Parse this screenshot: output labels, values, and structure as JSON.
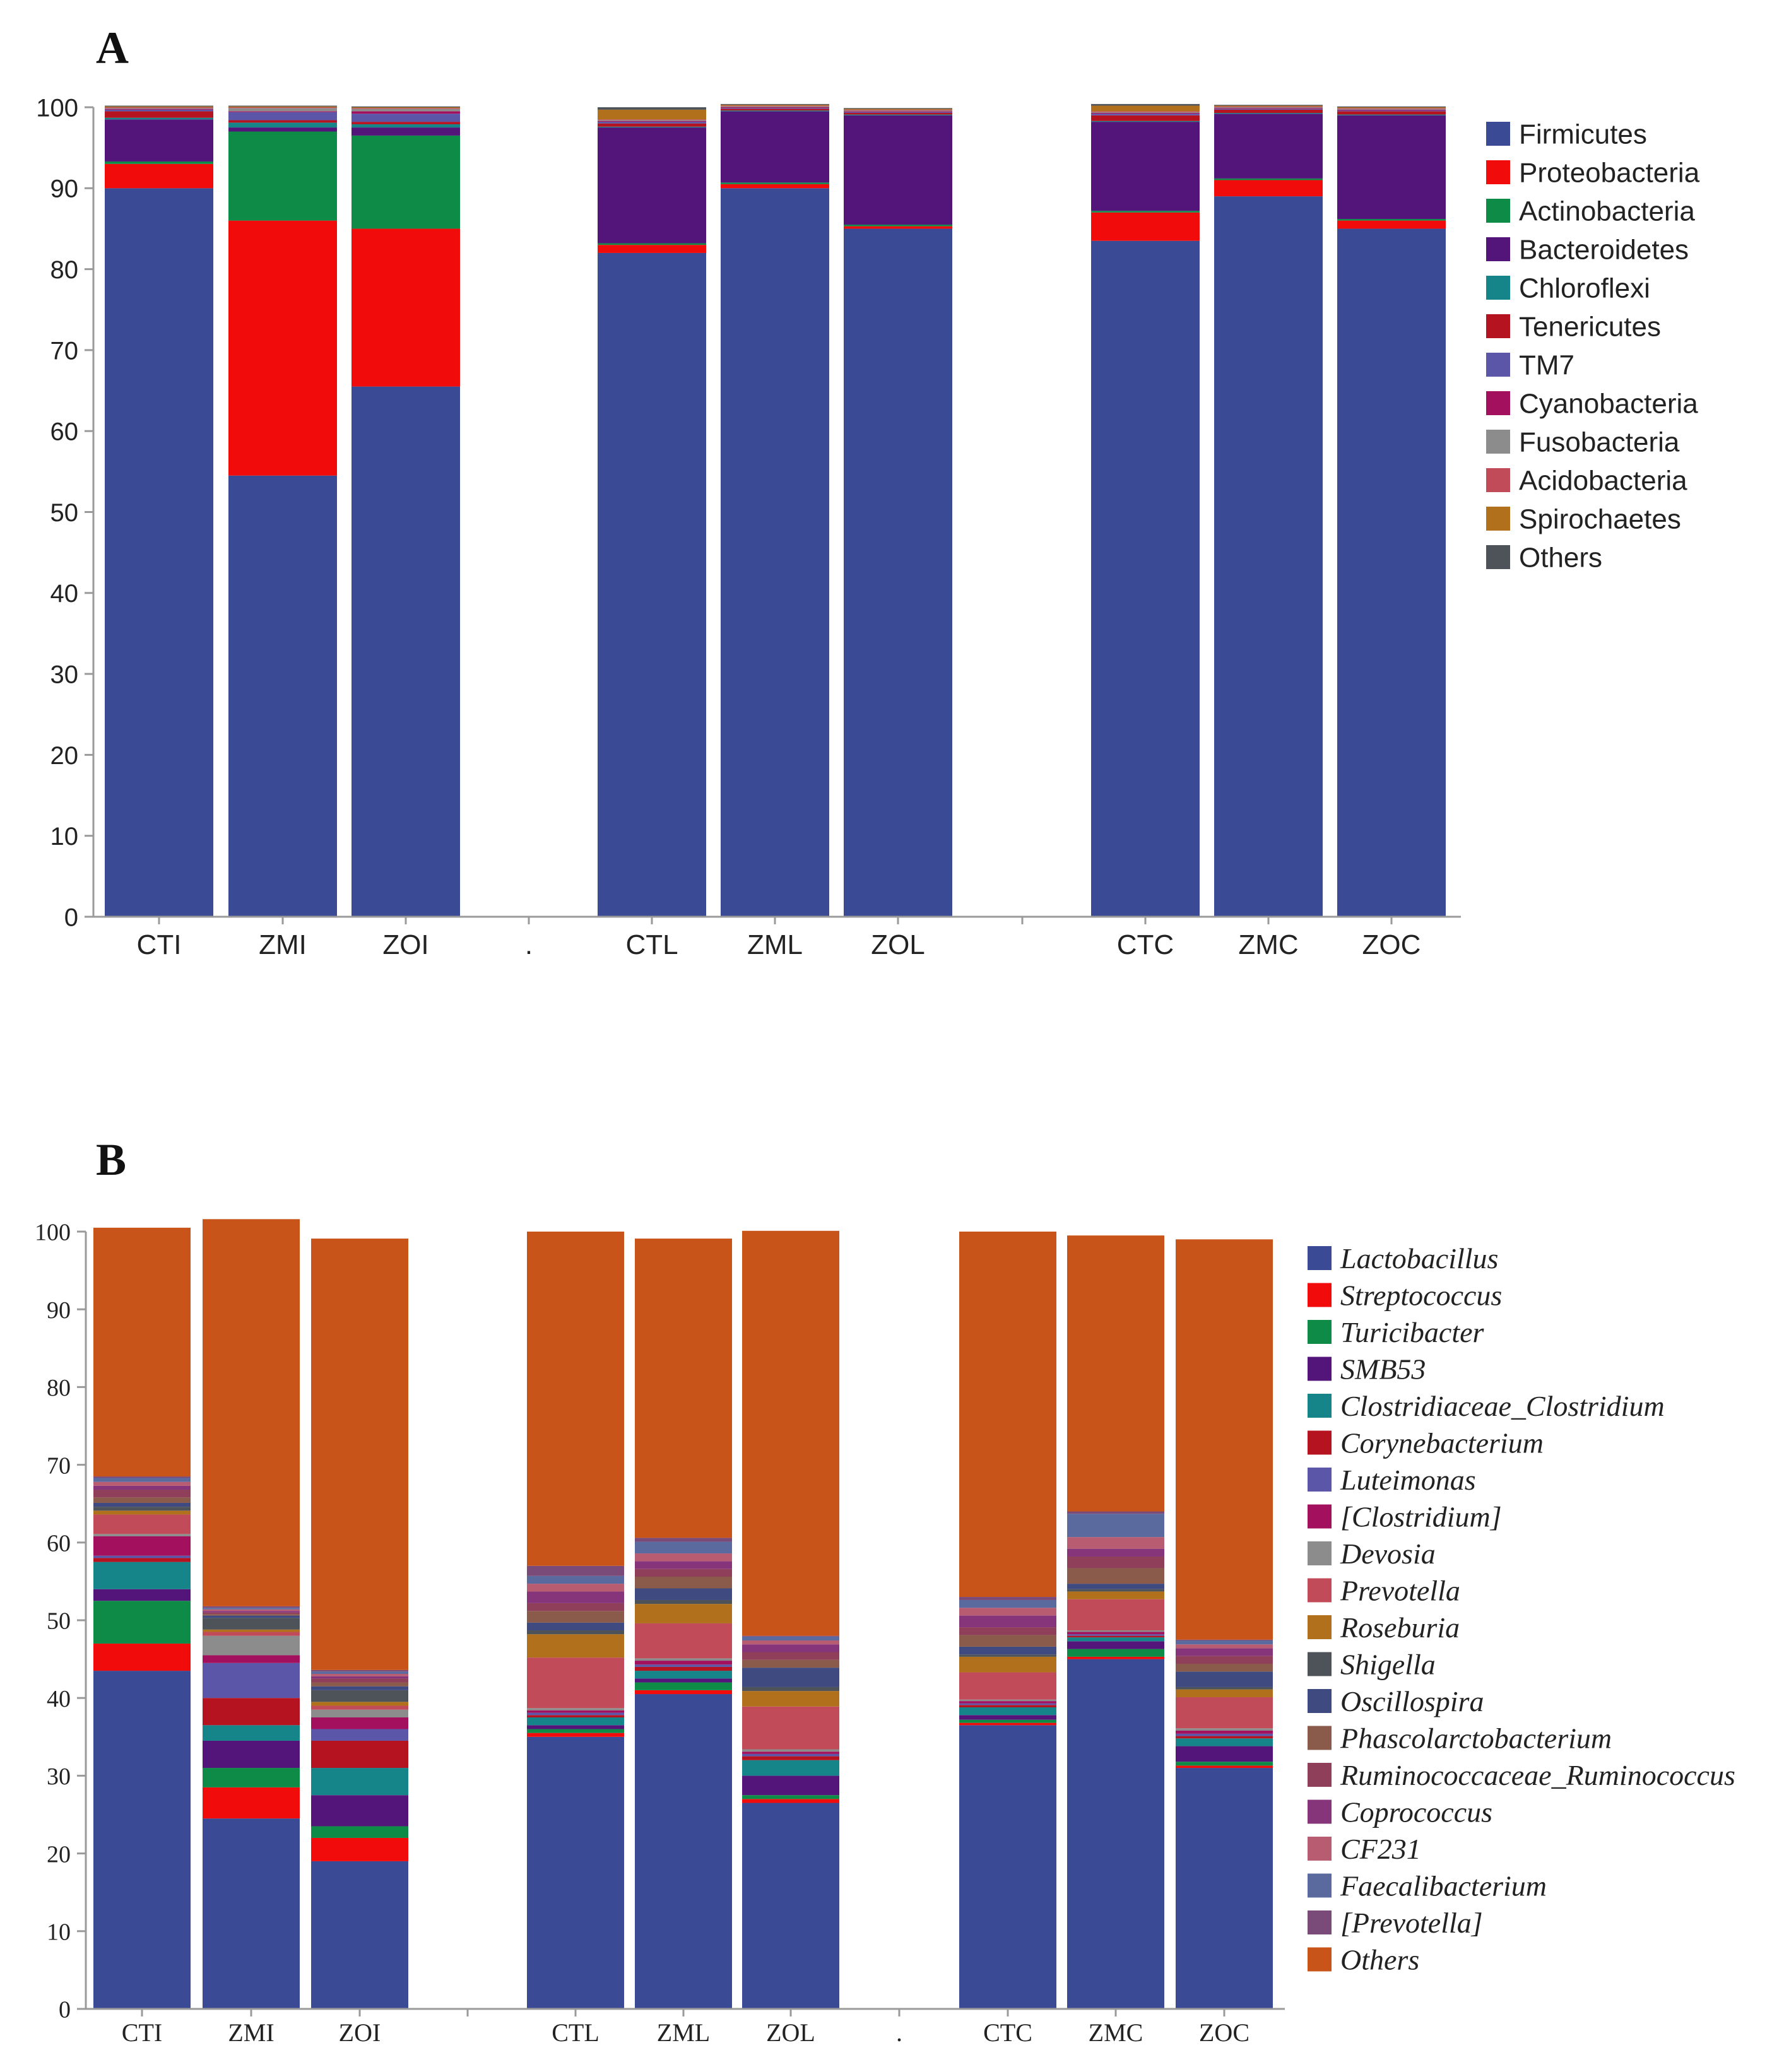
{
  "chart_data": [
    {
      "type": "bar",
      "stacked": true,
      "panel_label": "A",
      "title": "",
      "xlabel": "",
      "ylabel": "",
      "ylim": [
        0,
        100
      ],
      "yticks": [
        "0",
        "10",
        "20",
        "30",
        "40",
        "50",
        "60",
        "70",
        "80",
        "90",
        "100"
      ],
      "categories": [
        "CTI",
        "ZMI",
        "ZOI",
        ".",
        "CTL",
        "ZML",
        "ZOL",
        "",
        "CTC",
        "ZMC",
        "ZOC"
      ],
      "legend_position": "right",
      "series": [
        {
          "name": "Firmicutes",
          "color": "#3b4a94",
          "values": [
            90,
            54.5,
            65.5,
            null,
            82,
            90,
            85,
            null,
            83.5,
            89,
            85
          ]
        },
        {
          "name": "Proteobacteria",
          "color": "#f20b0b",
          "values": [
            3,
            31.5,
            19.5,
            null,
            1,
            0.5,
            0.3,
            null,
            3.5,
            2,
            1
          ]
        },
        {
          "name": "Actinobacteria",
          "color": "#0e8c47",
          "values": [
            0.3,
            11,
            11.5,
            null,
            0.2,
            0.2,
            0.2,
            null,
            0.2,
            0.2,
            0.2
          ]
        },
        {
          "name": "Bacteroidetes",
          "color": "#54157a",
          "values": [
            5.2,
            0.5,
            1,
            null,
            14.3,
            8.8,
            13.5,
            null,
            11,
            8,
            12.8
          ]
        },
        {
          "name": "Chloroflexi",
          "color": "#15858a",
          "values": [
            0.2,
            0.6,
            0.4,
            null,
            0.1,
            0.1,
            0.1,
            null,
            0.1,
            0.1,
            0.1
          ]
        },
        {
          "name": "Tenericutes",
          "color": "#b5131f",
          "values": [
            0.8,
            0.3,
            0.3,
            null,
            0.4,
            0.2,
            0.2,
            null,
            0.7,
            0.4,
            0.4
          ]
        },
        {
          "name": "TM7",
          "color": "#5c56a8",
          "values": [
            0.2,
            1,
            1,
            null,
            0.2,
            0.1,
            0.1,
            null,
            0.2,
            0.1,
            0.1
          ]
        },
        {
          "name": "Cyanobacteria",
          "color": "#a3105e",
          "values": [
            0.1,
            0.1,
            0.3,
            null,
            0.1,
            0.1,
            0.1,
            null,
            0.1,
            0.1,
            0.1
          ]
        },
        {
          "name": "Fusobacteria",
          "color": "#8c8c8c",
          "values": [
            0.1,
            0.4,
            0.3,
            null,
            0.1,
            0.1,
            0.1,
            null,
            0.1,
            0.1,
            0.1
          ]
        },
        {
          "name": "Acidobacteria",
          "color": "#c24b5a",
          "values": [
            0.1,
            0.1,
            0.1,
            null,
            0.1,
            0.1,
            0.1,
            null,
            0.1,
            0.1,
            0.1
          ]
        },
        {
          "name": "Spirochaetes",
          "color": "#b0701c",
          "values": [
            0.1,
            0.1,
            0.1,
            null,
            1.2,
            0.1,
            0.1,
            null,
            0.7,
            0.1,
            0.1
          ]
        },
        {
          "name": "Others",
          "color": "#4d5358",
          "values": [
            0.1,
            0.1,
            0.1,
            null,
            0.3,
            0.1,
            0.1,
            null,
            0.2,
            0.1,
            0.1
          ]
        }
      ]
    },
    {
      "type": "bar",
      "stacked": true,
      "panel_label": "B",
      "title": "",
      "xlabel": "",
      "ylabel": "",
      "ylim": [
        0,
        100
      ],
      "yticks": [
        "0",
        "10",
        "20",
        "30",
        "40",
        "50",
        "60",
        "70",
        "80",
        "90",
        "100"
      ],
      "categories": [
        "CTI",
        "ZMI",
        "ZOI",
        "",
        "CTL",
        "ZML",
        "ZOL",
        ".",
        "CTC",
        "ZMC",
        "ZOC"
      ],
      "legend_position": "right",
      "series": [
        {
          "name": "Lactobacillus",
          "color": "#3b4a94",
          "values": [
            43.5,
            24.5,
            19,
            null,
            35,
            40.5,
            26.5,
            null,
            36.5,
            45,
            31
          ]
        },
        {
          "name": "Streptococcus",
          "color": "#f20b0b",
          "values": [
            3.5,
            4,
            3,
            null,
            0.5,
            0.5,
            0.5,
            null,
            0.3,
            0.3,
            0.3
          ]
        },
        {
          "name": "Turicibacter",
          "color": "#0e8c47",
          "values": [
            5.5,
            2.5,
            1.5,
            null,
            0.5,
            1,
            0.5,
            null,
            0.4,
            1,
            0.5
          ]
        },
        {
          "name": "SMB53",
          "color": "#54157a",
          "values": [
            1.5,
            3.5,
            4,
            null,
            0.5,
            0.5,
            2.5,
            null,
            0.6,
            1,
            2
          ]
        },
        {
          "name": "Clostridiaceae_Clostridium",
          "color": "#15858a",
          "values": [
            3.5,
            2,
            3.5,
            null,
            1,
            1,
            2,
            null,
            1,
            0.5,
            1
          ]
        },
        {
          "name": "Corynebacterium",
          "color": "#b5131f",
          "values": [
            0.5,
            3.5,
            3.5,
            null,
            0.3,
            0.5,
            0.5,
            null,
            0.3,
            0.2,
            0.3
          ]
        },
        {
          "name": "Luteimonas",
          "color": "#5c56a8",
          "values": [
            0.3,
            4.5,
            1.5,
            null,
            0.3,
            0.3,
            0.3,
            null,
            0.2,
            0.2,
            0.3
          ]
        },
        {
          "name": "[Clostridium]",
          "color": "#a3105e",
          "values": [
            2.5,
            1,
            1.5,
            null,
            0.3,
            0.5,
            0.3,
            null,
            0.3,
            0.3,
            0.4
          ]
        },
        {
          "name": "Devosia",
          "color": "#8c8c8c",
          "values": [
            0.3,
            2.5,
            1,
            null,
            0.3,
            0.3,
            0.3,
            null,
            0.2,
            0.2,
            0.3
          ]
        },
        {
          "name": "Prevotella",
          "color": "#c24b5a",
          "values": [
            2.5,
            0.5,
            0.5,
            null,
            6.5,
            4.5,
            5.5,
            null,
            3.5,
            4,
            4
          ]
        },
        {
          "name": "Roseburia",
          "color": "#b0701c",
          "values": [
            0.5,
            0.3,
            0.5,
            null,
            3,
            2.5,
            2,
            null,
            2,
            1,
            1
          ]
        },
        {
          "name": "Shigella",
          "color": "#4d5358",
          "values": [
            0.5,
            1.5,
            1.5,
            null,
            0.5,
            0.5,
            0.5,
            null,
            0.3,
            0.3,
            0.3
          ]
        },
        {
          "name": "Oscillospira",
          "color": "#3f4b80",
          "values": [
            0.5,
            0.3,
            0.5,
            null,
            1,
            1.5,
            2.5,
            null,
            1,
            0.7,
            2
          ]
        },
        {
          "name": "Phascolarctobacterium",
          "color": "#8a5a4a",
          "values": [
            0.7,
            0.2,
            0.5,
            null,
            1.5,
            1.5,
            1,
            null,
            1.5,
            2,
            1
          ]
        },
        {
          "name": "Ruminococcaceae_Ruminococcus",
          "color": "#8f3f5a",
          "values": [
            1,
            0.2,
            0.5,
            null,
            1,
            1,
            1,
            null,
            1,
            1.5,
            1
          ]
        },
        {
          "name": "Coprococcus",
          "color": "#86357a",
          "values": [
            0.5,
            0.2,
            0.3,
            null,
            1.5,
            1,
            1,
            null,
            1.5,
            1,
            1
          ]
        },
        {
          "name": "CF231",
          "color": "#b85c72",
          "values": [
            0.5,
            0.2,
            0.3,
            null,
            1,
            1,
            0.5,
            null,
            1,
            1.5,
            0.5
          ]
        },
        {
          "name": "Faecalibacterium",
          "color": "#5b6a9e",
          "values": [
            0.5,
            0.2,
            0.3,
            null,
            1,
            1.5,
            0.5,
            null,
            1,
            3,
            0.5
          ]
        },
        {
          "name": "[Prevotella]",
          "color": "#7a4a78",
          "values": [
            0.2,
            0.2,
            0.2,
            null,
            1.3,
            0.5,
            0.1,
            null,
            0.4,
            0.3,
            0.1
          ]
        },
        {
          "name": "Others",
          "color": "#c9541a",
          "values": [
            32,
            49.8,
            55.5,
            null,
            43,
            38.5,
            52.1,
            null,
            47,
            35.5,
            51.5
          ]
        }
      ]
    }
  ]
}
